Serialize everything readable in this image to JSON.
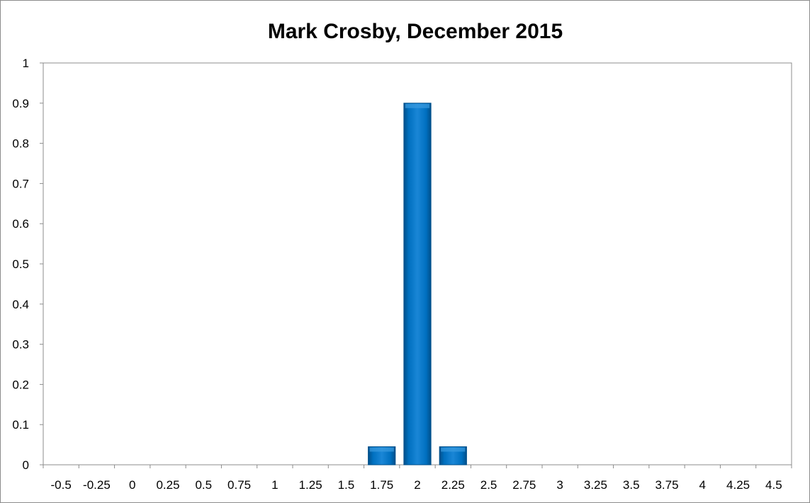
{
  "chart_data": {
    "type": "bar",
    "title": "Mark Crosby, December 2015",
    "xlabel": "",
    "ylabel": "",
    "categories": [
      "-0.5",
      "-0.25",
      "0",
      "0.25",
      "0.5",
      "0.75",
      "1",
      "1.25",
      "1.5",
      "1.75",
      "2",
      "2.25",
      "2.5",
      "2.75",
      "3",
      "3.25",
      "3.5",
      "3.75",
      "4",
      "4.25",
      "4.5"
    ],
    "values": [
      0,
      0,
      0,
      0,
      0,
      0,
      0,
      0,
      0,
      0.045,
      0.9,
      0.045,
      0,
      0,
      0,
      0,
      0,
      0,
      0,
      0,
      0
    ],
    "ylim": [
      0,
      1
    ],
    "yticks": [
      "0",
      "0.1",
      "0.2",
      "0.3",
      "0.4",
      "0.5",
      "0.6",
      "0.7",
      "0.8",
      "0.9",
      "1"
    ],
    "grid": false,
    "legend": "none",
    "colors": {
      "bar": "#0070c0",
      "bar_light": "#3a9be0",
      "bar_dark": "#004f8a",
      "axis": "#8c8c8c"
    }
  }
}
